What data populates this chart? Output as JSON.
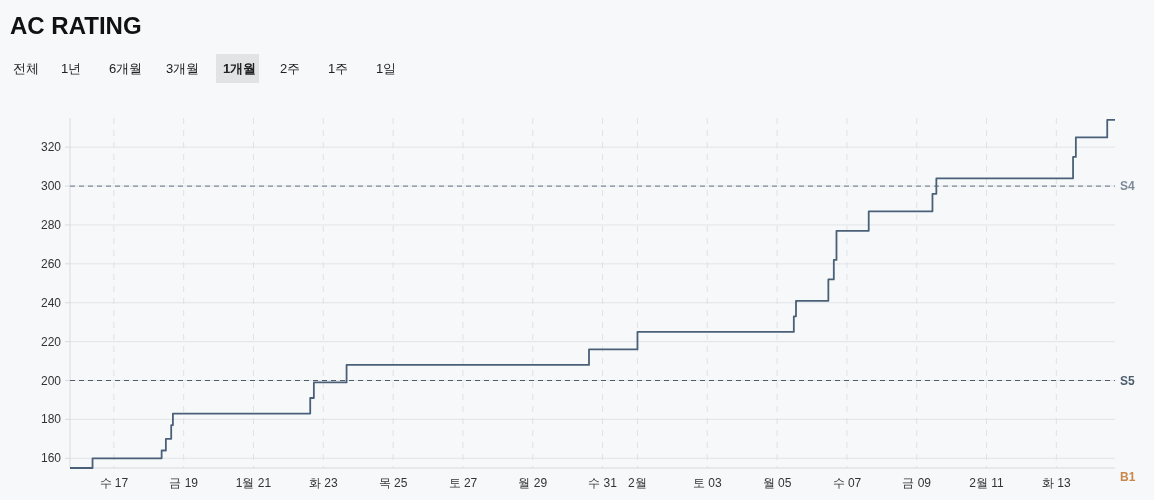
{
  "chart_data": {
    "type": "step",
    "title": "AC RATING",
    "annotations": [
      "전체",
      "1년",
      "6개월",
      "3개월",
      "1개월",
      "2주",
      "1주",
      "1일",
      "B1"
    ],
    "x": [
      "--01-15T17:50",
      "--01-16T09:20",
      "--01-18T08:50",
      "--01-18T11:45",
      "--01-18T15:25",
      "--01-18T16:35",
      "--01-22T15:00",
      "--01-22T17:30",
      "--01-23T16:00",
      "--01-30T14:40",
      "--02-01T00:00",
      "--02-05T11:30",
      "--02-05T13:00",
      "--02-06T11:15",
      "--02-06T15:00",
      "--02-06T16:50",
      "--02-07T15:00",
      "--02-09T10:50",
      "--02-09T13:30",
      "--02-13T11:30",
      "--02-13T13:25",
      "--02-14T11:00",
      "--02-14T16:20"
    ],
    "series": [
      {
        "color": "#4a6078",
        "values": [
          155,
          160,
          164,
          170,
          177,
          183,
          191,
          199,
          208,
          216,
          225,
          233,
          241,
          252,
          262,
          277,
          287,
          296,
          304,
          315,
          325,
          334,
          334
        ]
      }
    ],
    "xlim": [
      "--01-15T17:50",
      "--02-14T16:20"
    ],
    "xticks": [
      {
        "value": "--01-17",
        "label": "수 17"
      },
      {
        "value": "--01-19",
        "label": "금 19"
      },
      {
        "value": "--01-21",
        "label": "1월 21"
      },
      {
        "value": "--01-23",
        "label": "화 23"
      },
      {
        "value": "--01-25",
        "label": "목 25"
      },
      {
        "value": "--01-27",
        "label": "토 27"
      },
      {
        "value": "--01-29",
        "label": "월 29"
      },
      {
        "value": "--01-31",
        "label": "수 31"
      },
      {
        "value": "--02-01",
        "label": "2월"
      },
      {
        "value": "--02-03",
        "label": "토 03"
      },
      {
        "value": "--02-05",
        "label": "월 05"
      },
      {
        "value": "--02-07",
        "label": "수 07"
      },
      {
        "value": "--02-09",
        "label": "금 09"
      },
      {
        "value": "--02-11",
        "label": "2월 11"
      },
      {
        "value": "--02-13",
        "label": "화 13"
      }
    ],
    "ylim": [
      155,
      335
    ],
    "yticks": [
      160,
      180,
      200,
      220,
      240,
      260,
      280,
      300,
      320
    ],
    "ref_lines": [
      {
        "axis": "y",
        "value": 300,
        "label": "S4",
        "color": "#7d8b99"
      },
      {
        "axis": "y",
        "value": 200,
        "label": "S5",
        "color": "#4e5d6c"
      }
    ],
    "grid": true,
    "line_style": "solid",
    "marker": "none"
  }
}
